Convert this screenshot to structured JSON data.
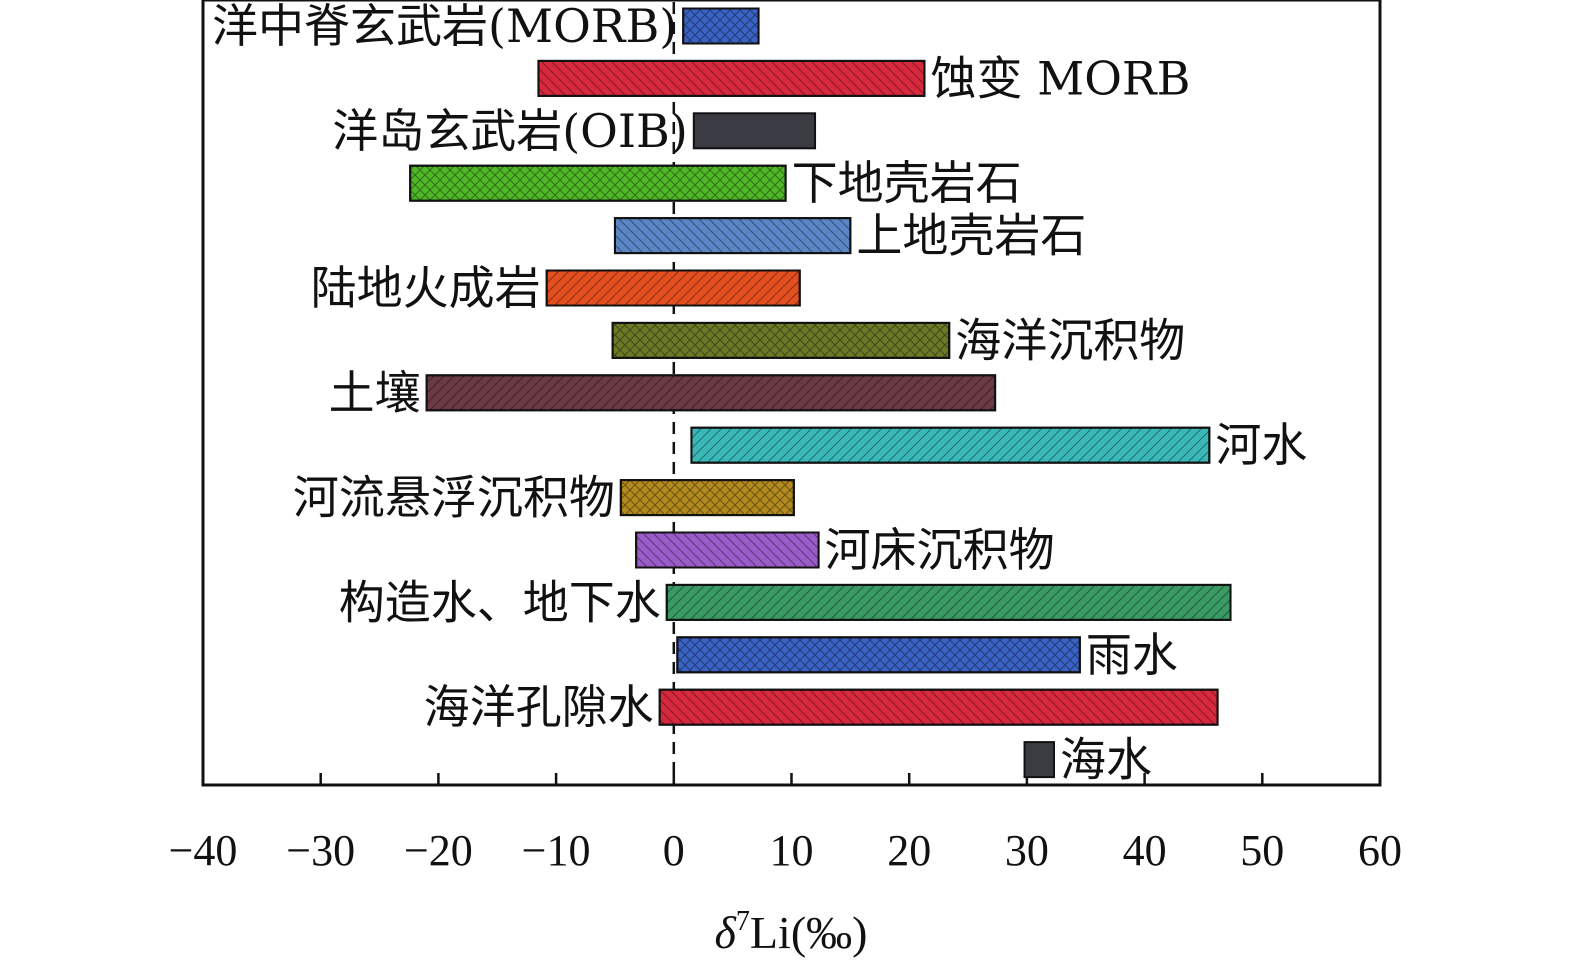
{
  "chart_data": {
    "type": "bar",
    "orientation": "horizontal-range",
    "title": "",
    "xlabel": "δ7Li(‰)",
    "xlabel_parts": {
      "symbol": "δ",
      "superscript": "7",
      "element": "Li",
      "unit": "(‰)"
    },
    "ylabel": "",
    "xlim": [
      -40,
      60
    ],
    "xticks": [
      -40,
      -30,
      -20,
      -10,
      0,
      10,
      20,
      30,
      40,
      50,
      60
    ],
    "xtick_labels": [
      "−40",
      "−30",
      "−20",
      "−10",
      "0",
      "10",
      "20",
      "30",
      "40",
      "50",
      "60"
    ],
    "reference_line": 0,
    "grid": false,
    "series": [
      {
        "name": "洋中脊玄武岩(MORB)",
        "min": 0.8,
        "max": 7.2,
        "color": "#3a63c4",
        "hatch": "cross",
        "label_side": "left"
      },
      {
        "name": "蚀变 MORB",
        "min": -11.5,
        "max": 21.3,
        "color": "#d8283d",
        "hatch": "diag-back",
        "label_side": "right"
      },
      {
        "name": "洋岛玄武岩(OIB)",
        "min": 1.7,
        "max": 12.0,
        "color": "#3b3b44",
        "hatch": "none",
        "label_side": "left"
      },
      {
        "name": "下地壳岩石",
        "min": -22.4,
        "max": 9.5,
        "color": "#4fb826",
        "hatch": "cross",
        "label_side": "right"
      },
      {
        "name": "上地壳岩石",
        "min": -5.0,
        "max": 15.0,
        "color": "#5b86c6",
        "hatch": "diag-back",
        "label_side": "right"
      },
      {
        "name": "陆地火成岩",
        "min": -10.8,
        "max": 10.7,
        "color": "#e34f1f",
        "hatch": "diag-fwd",
        "label_side": "left"
      },
      {
        "name": "海洋沉积物",
        "min": -5.2,
        "max": 23.4,
        "color": "#6b7a26",
        "hatch": "cross",
        "label_side": "right"
      },
      {
        "name": "土壤",
        "min": -21.0,
        "max": 27.3,
        "color": "#6b3a45",
        "hatch": "diag-fwd",
        "label_side": "left"
      },
      {
        "name": "河水",
        "min": 1.5,
        "max": 45.5,
        "color": "#3ab8b8",
        "hatch": "diag-fwd",
        "label_side": "right"
      },
      {
        "name": "河流悬浮沉积物",
        "min": -4.5,
        "max": 10.2,
        "color": "#b38a1e",
        "hatch": "cross",
        "label_side": "left"
      },
      {
        "name": "河床沉积物",
        "min": -3.2,
        "max": 12.3,
        "color": "#9a5cc8",
        "hatch": "diag-back",
        "label_side": "right"
      },
      {
        "name": "构造水、地下水",
        "min": -0.6,
        "max": 47.3,
        "color": "#3a9a63",
        "hatch": "diag-fwd",
        "label_side": "left"
      },
      {
        "name": "雨水",
        "min": 0.3,
        "max": 34.5,
        "color": "#3a63c4",
        "hatch": "cross",
        "label_side": "right"
      },
      {
        "name": "海洋孔隙水",
        "min": -1.2,
        "max": 46.2,
        "color": "#d8283d",
        "hatch": "diag-back",
        "label_side": "left"
      },
      {
        "name": "海水",
        "min": 29.8,
        "max": 32.3,
        "color": "#3b3b44",
        "hatch": "none",
        "label_side": "right"
      }
    ]
  }
}
